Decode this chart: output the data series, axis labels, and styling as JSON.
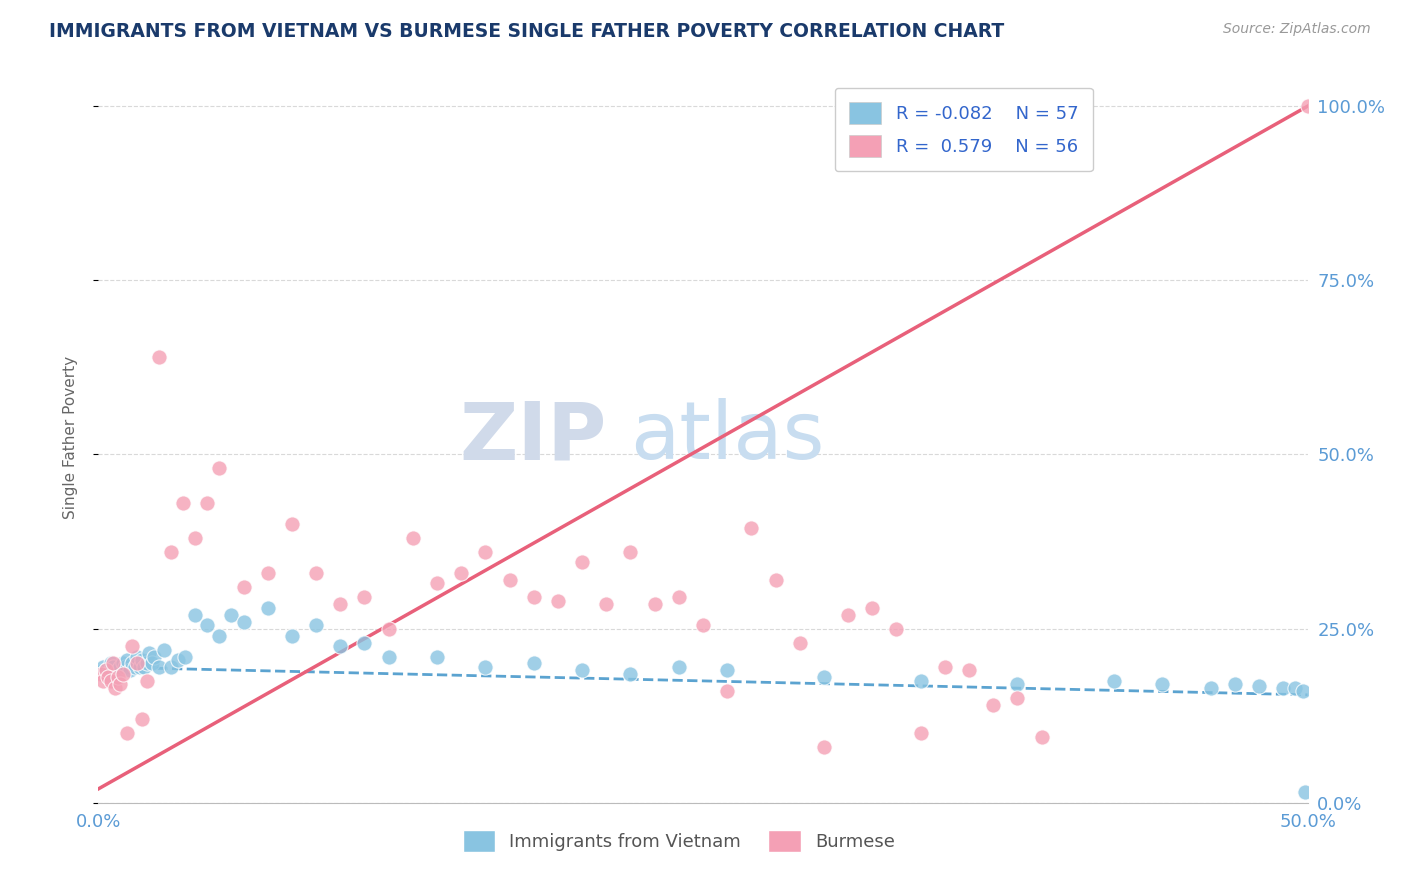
{
  "title": "IMMIGRANTS FROM VIETNAM VS BURMESE SINGLE FATHER POVERTY CORRELATION CHART",
  "source": "Source: ZipAtlas.com",
  "ylabel": "Single Father Poverty",
  "legend_bottom": [
    "Immigrants from Vietnam",
    "Burmese"
  ],
  "r_vietnam": -0.082,
  "n_vietnam": 57,
  "r_burmese": 0.579,
  "n_burmese": 56,
  "color_vietnam": "#89c4e1",
  "color_burmese": "#f4a0b5",
  "color_line_vietnam": "#5ba3d0",
  "color_line_burmese": "#e8607a",
  "title_color": "#1a3a6b",
  "tick_color": "#5b9bd5",
  "label_color": "#666666",
  "watermark_zip": "ZIP",
  "watermark_atlas": "atlas",
  "xlim": [
    0.0,
    0.5
  ],
  "ylim": [
    0.0,
    1.05
  ],
  "viet_x": [
    0.002,
    0.003,
    0.004,
    0.005,
    0.006,
    0.007,
    0.008,
    0.009,
    0.01,
    0.011,
    0.012,
    0.013,
    0.014,
    0.015,
    0.016,
    0.017,
    0.018,
    0.019,
    0.02,
    0.021,
    0.022,
    0.023,
    0.025,
    0.027,
    0.03,
    0.033,
    0.036,
    0.04,
    0.045,
    0.05,
    0.055,
    0.06,
    0.07,
    0.08,
    0.09,
    0.1,
    0.11,
    0.12,
    0.14,
    0.16,
    0.18,
    0.2,
    0.22,
    0.24,
    0.26,
    0.3,
    0.34,
    0.38,
    0.42,
    0.44,
    0.46,
    0.47,
    0.48,
    0.49,
    0.495,
    0.498,
    0.499
  ],
  "viet_y": [
    0.195,
    0.19,
    0.185,
    0.2,
    0.195,
    0.185,
    0.19,
    0.195,
    0.2,
    0.195,
    0.205,
    0.19,
    0.2,
    0.195,
    0.21,
    0.195,
    0.205,
    0.195,
    0.2,
    0.215,
    0.2,
    0.21,
    0.195,
    0.22,
    0.195,
    0.205,
    0.21,
    0.27,
    0.255,
    0.24,
    0.27,
    0.26,
    0.28,
    0.24,
    0.255,
    0.225,
    0.23,
    0.21,
    0.21,
    0.195,
    0.2,
    0.19,
    0.185,
    0.195,
    0.19,
    0.18,
    0.175,
    0.17,
    0.175,
    0.17,
    0.165,
    0.17,
    0.168,
    0.165,
    0.165,
    0.16,
    0.015
  ],
  "burm_x": [
    0.001,
    0.002,
    0.003,
    0.004,
    0.005,
    0.006,
    0.007,
    0.008,
    0.009,
    0.01,
    0.012,
    0.014,
    0.016,
    0.018,
    0.02,
    0.025,
    0.03,
    0.035,
    0.04,
    0.045,
    0.05,
    0.06,
    0.07,
    0.08,
    0.09,
    0.1,
    0.11,
    0.12,
    0.13,
    0.14,
    0.15,
    0.16,
    0.17,
    0.18,
    0.19,
    0.2,
    0.21,
    0.22,
    0.23,
    0.24,
    0.25,
    0.26,
    0.27,
    0.28,
    0.29,
    0.3,
    0.31,
    0.32,
    0.33,
    0.34,
    0.35,
    0.36,
    0.37,
    0.38,
    0.39,
    0.5
  ],
  "burm_y": [
    0.185,
    0.175,
    0.19,
    0.18,
    0.175,
    0.2,
    0.165,
    0.18,
    0.17,
    0.185,
    0.1,
    0.225,
    0.2,
    0.12,
    0.175,
    0.64,
    0.36,
    0.43,
    0.38,
    0.43,
    0.48,
    0.31,
    0.33,
    0.4,
    0.33,
    0.285,
    0.295,
    0.25,
    0.38,
    0.315,
    0.33,
    0.36,
    0.32,
    0.295,
    0.29,
    0.345,
    0.285,
    0.36,
    0.285,
    0.295,
    0.255,
    0.16,
    0.395,
    0.32,
    0.23,
    0.08,
    0.27,
    0.28,
    0.25,
    0.1,
    0.195,
    0.19,
    0.14,
    0.15,
    0.095,
    1.0
  ],
  "figsize": [
    14.06,
    8.92
  ],
  "dpi": 100
}
